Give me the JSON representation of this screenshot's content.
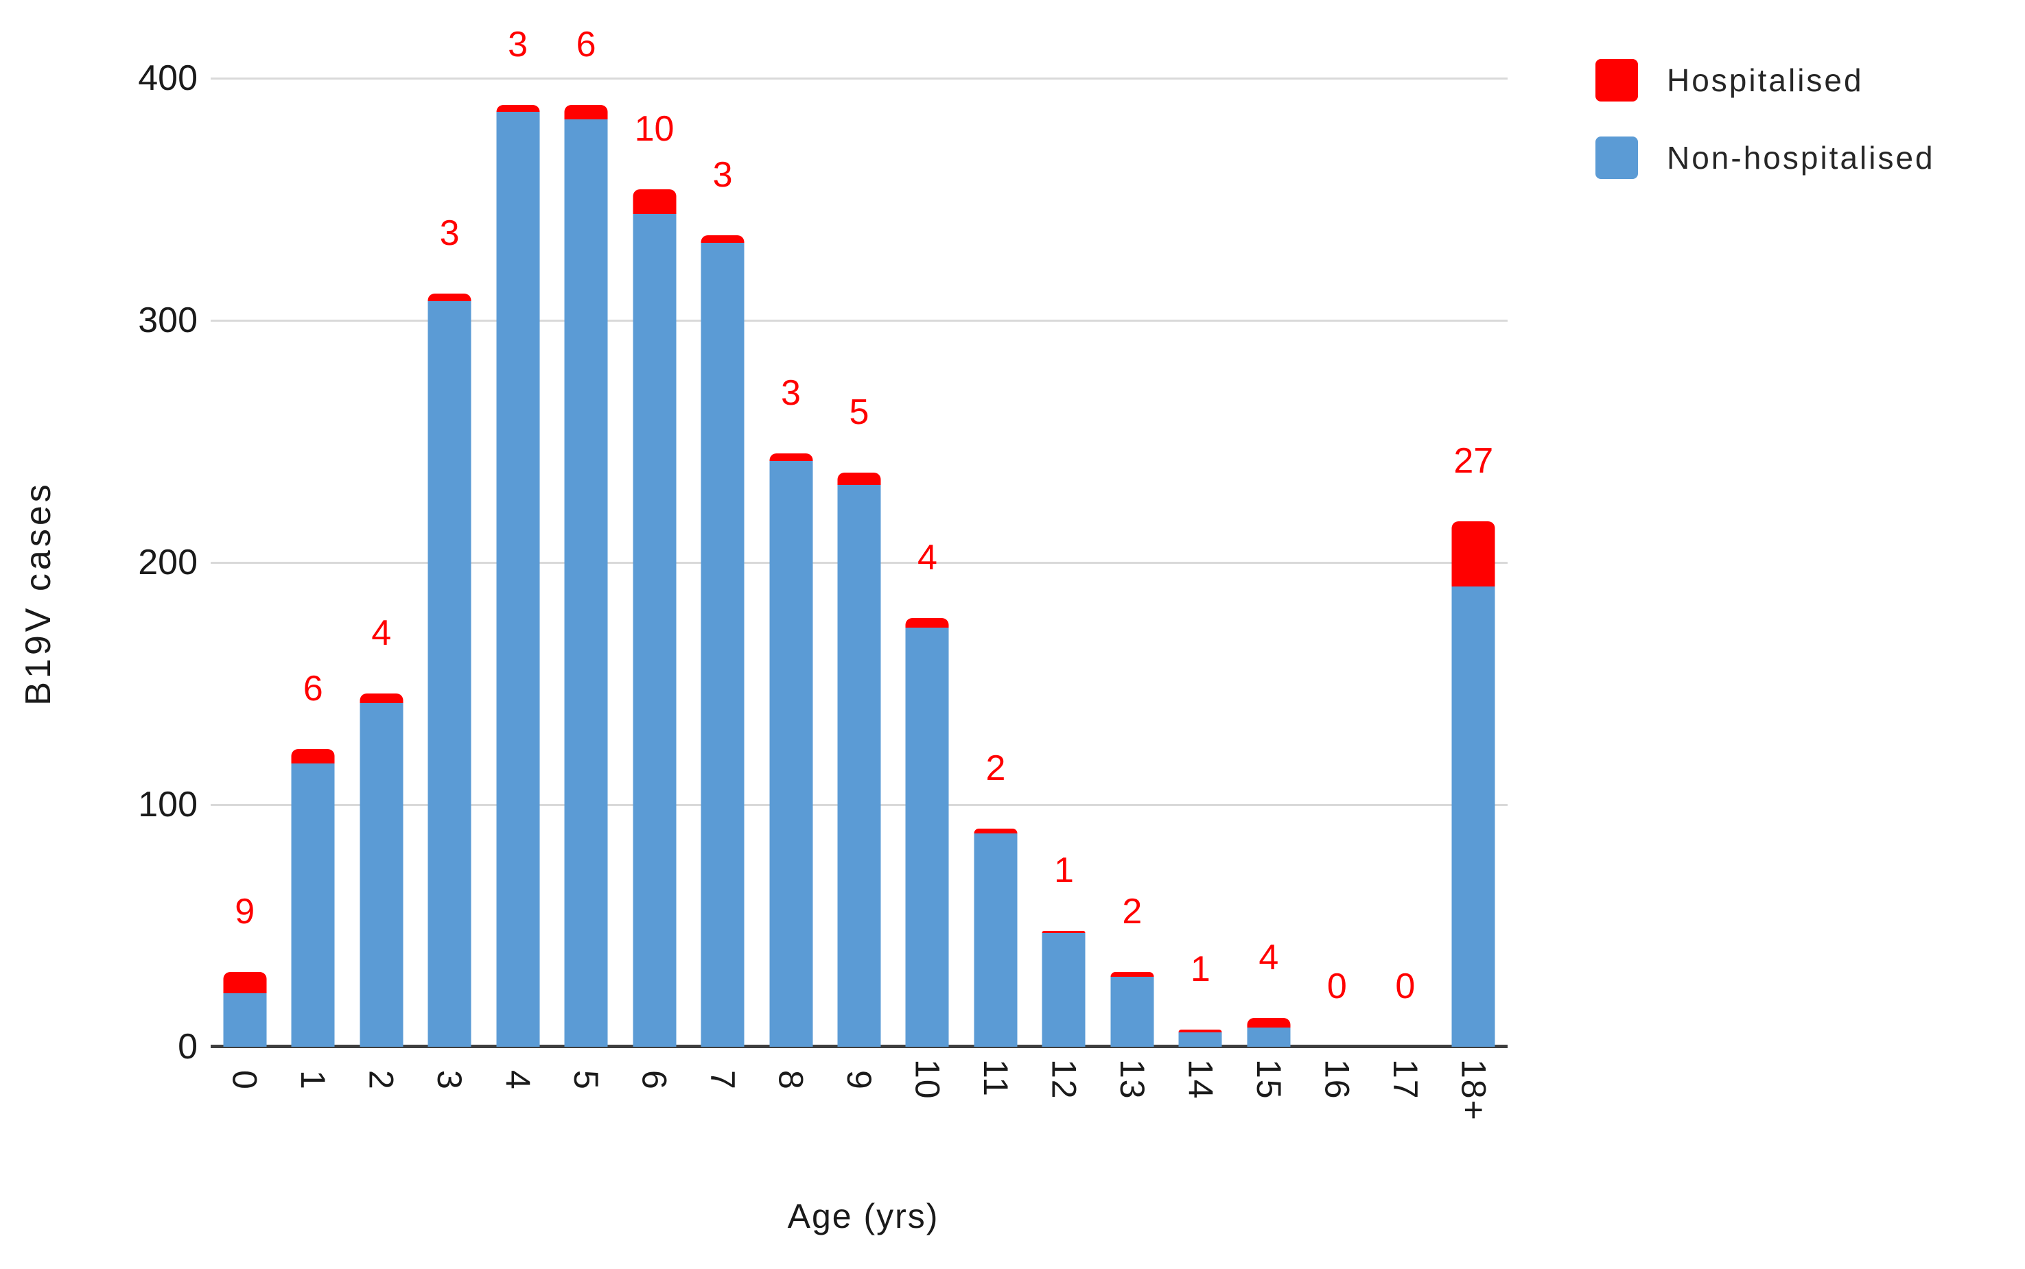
{
  "chart_data": {
    "type": "bar",
    "stacked": true,
    "categories": [
      "0",
      "1",
      "2",
      "3",
      "4",
      "5",
      "6",
      "7",
      "8",
      "9",
      "10",
      "11",
      "12",
      "13",
      "14",
      "15",
      "16",
      "17",
      "18+"
    ],
    "series": [
      {
        "name": "Hospitalised",
        "color": "#FF0000",
        "values": [
          9,
          6,
          4,
          3,
          3,
          6,
          10,
          3,
          3,
          5,
          4,
          2,
          1,
          2,
          1,
          4,
          0,
          0,
          27
        ]
      },
      {
        "name": "Non-hospitalised",
        "color": "#5B9BD5",
        "values": [
          22,
          117,
          142,
          308,
          386,
          383,
          344,
          332,
          242,
          232,
          173,
          88,
          47,
          29,
          6,
          8,
          0,
          0,
          190
        ]
      }
    ],
    "totals": [
      31,
      123,
      146,
      311,
      389,
      389,
      354,
      335,
      245,
      237,
      177,
      90,
      48,
      31,
      7,
      12,
      0,
      0,
      217
    ],
    "data_labels": {
      "series": "Hospitalised",
      "values": [
        "9",
        "6",
        "4",
        "3",
        "3",
        "6",
        "10",
        "3",
        "3",
        "5",
        "4",
        "2",
        "1",
        "2",
        "1",
        "4",
        "0",
        "0",
        "27"
      ],
      "color": "#FF0000",
      "position": "above bar top"
    },
    "xlabel": "Age (yrs)",
    "ylabel": "B19V cases",
    "ylim": [
      0,
      400
    ],
    "yticks": [
      "0",
      "100",
      "200",
      "300",
      "400"
    ],
    "grid": "horizontal gridlines on",
    "gridline_color": "#D9D9D9",
    "axis_line_color": "#3F3F3F",
    "legend": {
      "position": "top-right",
      "entries": [
        "Hospitalised",
        "Non-hospitalised"
      ]
    },
    "title": ""
  }
}
